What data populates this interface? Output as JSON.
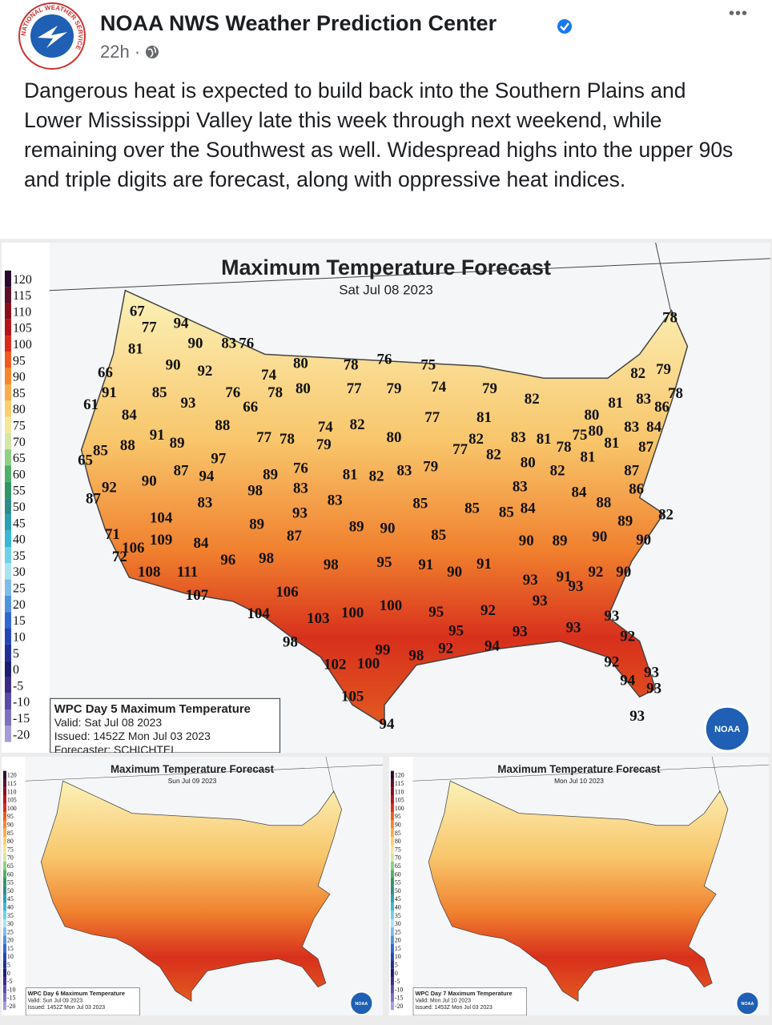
{
  "post": {
    "author": "NOAA NWS Weather Prediction Center",
    "time": "22h ·",
    "more": "•••",
    "text": "Dangerous heat is expected to build back into the Southern Plains and Lower Mississippi Valley late this week through next weekend, while remaining over the Southwest as well. Widespread highs into the upper 90s and triple digits are forecast, along with oppressive heat indices.",
    "logo_text": "NATIONAL WEATHER SERVICE"
  },
  "legend": [
    "120",
    "115",
    "110",
    "105",
    "100",
    "95",
    "90",
    "85",
    "80",
    "75",
    "70",
    "65",
    "60",
    "55",
    "50",
    "45",
    "40",
    "35",
    "30",
    "25",
    "20",
    "15",
    "10",
    "5",
    "0",
    "-5",
    "-10",
    "-15",
    "-20"
  ],
  "noaa": "NOAA",
  "maps": [
    {
      "title": "Maximum Temperature Forecast",
      "date": "Sat Jul 08 2023",
      "caption": [
        "WPC Day 5 Maximum Temperature",
        "Valid: Sat Jul 08 2023",
        "Issued: 1452Z Mon Jul 03 2023",
        "Forecaster: SCHICHTEL"
      ],
      "temperatures": [
        "67",
        "77",
        "94",
        "81",
        "90",
        "83",
        "76",
        "66",
        "90",
        "92",
        "74",
        "80",
        "78",
        "76",
        "75",
        "91",
        "85",
        "76",
        "78",
        "80",
        "77",
        "79",
        "74",
        "79",
        "82",
        "61",
        "93",
        "66",
        "84",
        "77",
        "81",
        "80",
        "81",
        "83",
        "86",
        "78",
        "82",
        "79",
        "78",
        "88",
        "74",
        "82",
        "80",
        "91",
        "89",
        "77",
        "78",
        "79",
        "82",
        "83",
        "81",
        "78",
        "75",
        "80",
        "81",
        "83",
        "84",
        "87",
        "65",
        "85",
        "88",
        "97",
        "77",
        "82",
        "81",
        "90",
        "87",
        "94",
        "89",
        "76",
        "81",
        "82",
        "83",
        "79",
        "80",
        "82",
        "87",
        "92",
        "98",
        "83",
        "83",
        "84",
        "86",
        "87",
        "83",
        "83",
        "85",
        "85",
        "85",
        "84",
        "88",
        "104",
        "93",
        "89",
        "82",
        "89",
        "89",
        "90",
        "85",
        "90",
        "89",
        "90",
        "90",
        "71",
        "106",
        "109",
        "84",
        "87",
        "72",
        "96",
        "98",
        "98",
        "95",
        "91",
        "90",
        "91",
        "108",
        "111",
        "92",
        "90",
        "93",
        "91",
        "93",
        "107",
        "106",
        "93",
        "104",
        "103",
        "100",
        "100",
        "95",
        "92",
        "93",
        "93",
        "95",
        "93",
        "92",
        "98",
        "99",
        "98",
        "92",
        "94",
        "102",
        "100",
        "92",
        "93",
        "94",
        "93",
        "105",
        "94",
        "93"
      ]
    },
    {
      "title": "Maximum Temperature Forecast",
      "date": "Sun Jul 09 2023",
      "caption": [
        "WPC Day 6 Maximum Temperature",
        "Valid: Sun Jul 09 2023",
        "Issued: 1452Z Mon Jul 03 2023"
      ]
    },
    {
      "title": "Maximum Temperature Forecast",
      "date": "Mon Jul 10 2023",
      "caption": [
        "WPC Day 7 Maximum Temperature",
        "Valid: Mon Jul 10 2023",
        "Issued: 1453Z Mon Jul 03 2023"
      ]
    }
  ]
}
